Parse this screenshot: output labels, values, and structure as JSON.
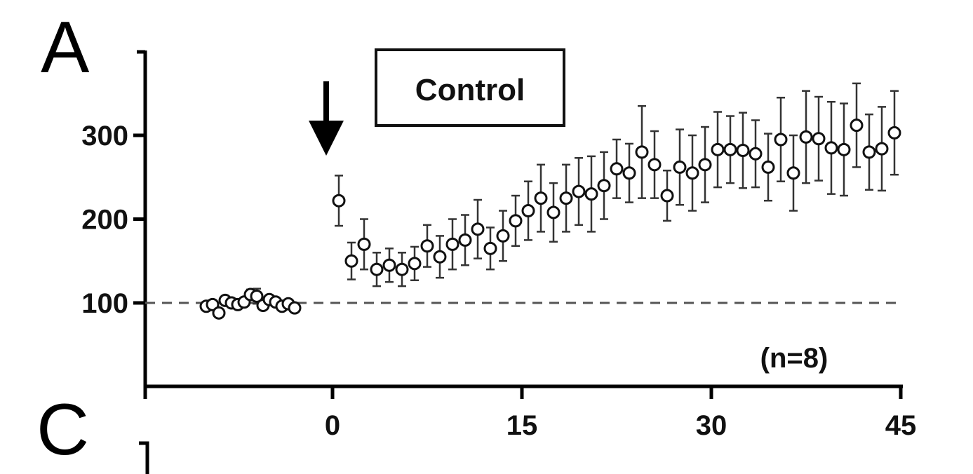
{
  "panel_labels": [
    "A",
    "C"
  ],
  "chart_data": {
    "type": "scatter",
    "title": "",
    "xlabel": "",
    "ylabel": "",
    "xlim": [
      -10.5,
      45
    ],
    "ylim": [
      0,
      400
    ],
    "x_ticks": [
      0,
      15,
      30,
      45
    ],
    "x_tick_labels": [
      "0",
      "15",
      "30",
      "45"
    ],
    "y_ticks": [
      100,
      200,
      300
    ],
    "y_tick_labels": [
      "100",
      "200",
      "300"
    ],
    "reference_line": 100,
    "marker": "open-circle",
    "legend_box": "Control",
    "annotation": "(n=8)",
    "arrow_at_x": -0.5,
    "grid": false,
    "series": [
      {
        "x": [
          -10,
          -9.5,
          -9,
          -8.5,
          -8,
          -7.5,
          -7,
          -6.5,
          -6,
          -5.5,
          -5,
          -4.5,
          -4,
          -3.5,
          -3
        ],
        "y": [
          96,
          98,
          88,
          103,
          100,
          98,
          101,
          110,
          108,
          97,
          104,
          101,
          96,
          99,
          94
        ],
        "err": [
          3,
          4,
          5,
          5,
          3,
          5,
          4,
          6,
          9,
          5,
          4,
          5,
          5,
          4,
          4
        ]
      },
      {
        "x": [
          0.5,
          1.5,
          2.5,
          3.5,
          4.5,
          5.5,
          6.5,
          7.5,
          8.5,
          9.5,
          10.5,
          11.5,
          12.5,
          13.5,
          14.5,
          15.5,
          16.5,
          17.5,
          18.5,
          19.5,
          20.5,
          21.5,
          22.5,
          23.5,
          24.5,
          25.5,
          26.5,
          27.5,
          28.5,
          29.5,
          30.5,
          31.5,
          32.5,
          33.5,
          34.5,
          35.5,
          36.5,
          37.5,
          38.5,
          39.5,
          40.5,
          41.5,
          42.5,
          43.5,
          44.5
        ],
        "y": [
          222,
          150,
          170,
          140,
          145,
          140,
          147,
          168,
          155,
          170,
          175,
          188,
          165,
          180,
          198,
          210,
          225,
          208,
          225,
          233,
          230,
          240,
          260,
          255,
          280,
          265,
          228,
          262,
          255,
          265,
          283,
          283,
          282,
          278,
          262,
          295,
          255,
          298,
          296,
          285,
          283,
          312,
          280,
          284,
          303
        ],
        "err": [
          30,
          22,
          30,
          20,
          20,
          20,
          20,
          25,
          25,
          30,
          30,
          35,
          25,
          30,
          30,
          35,
          40,
          35,
          40,
          40,
          45,
          40,
          35,
          35,
          55,
          40,
          30,
          45,
          45,
          45,
          45,
          40,
          45,
          40,
          40,
          50,
          45,
          55,
          50,
          55,
          55,
          50,
          45,
          50,
          50
        ]
      }
    ]
  }
}
